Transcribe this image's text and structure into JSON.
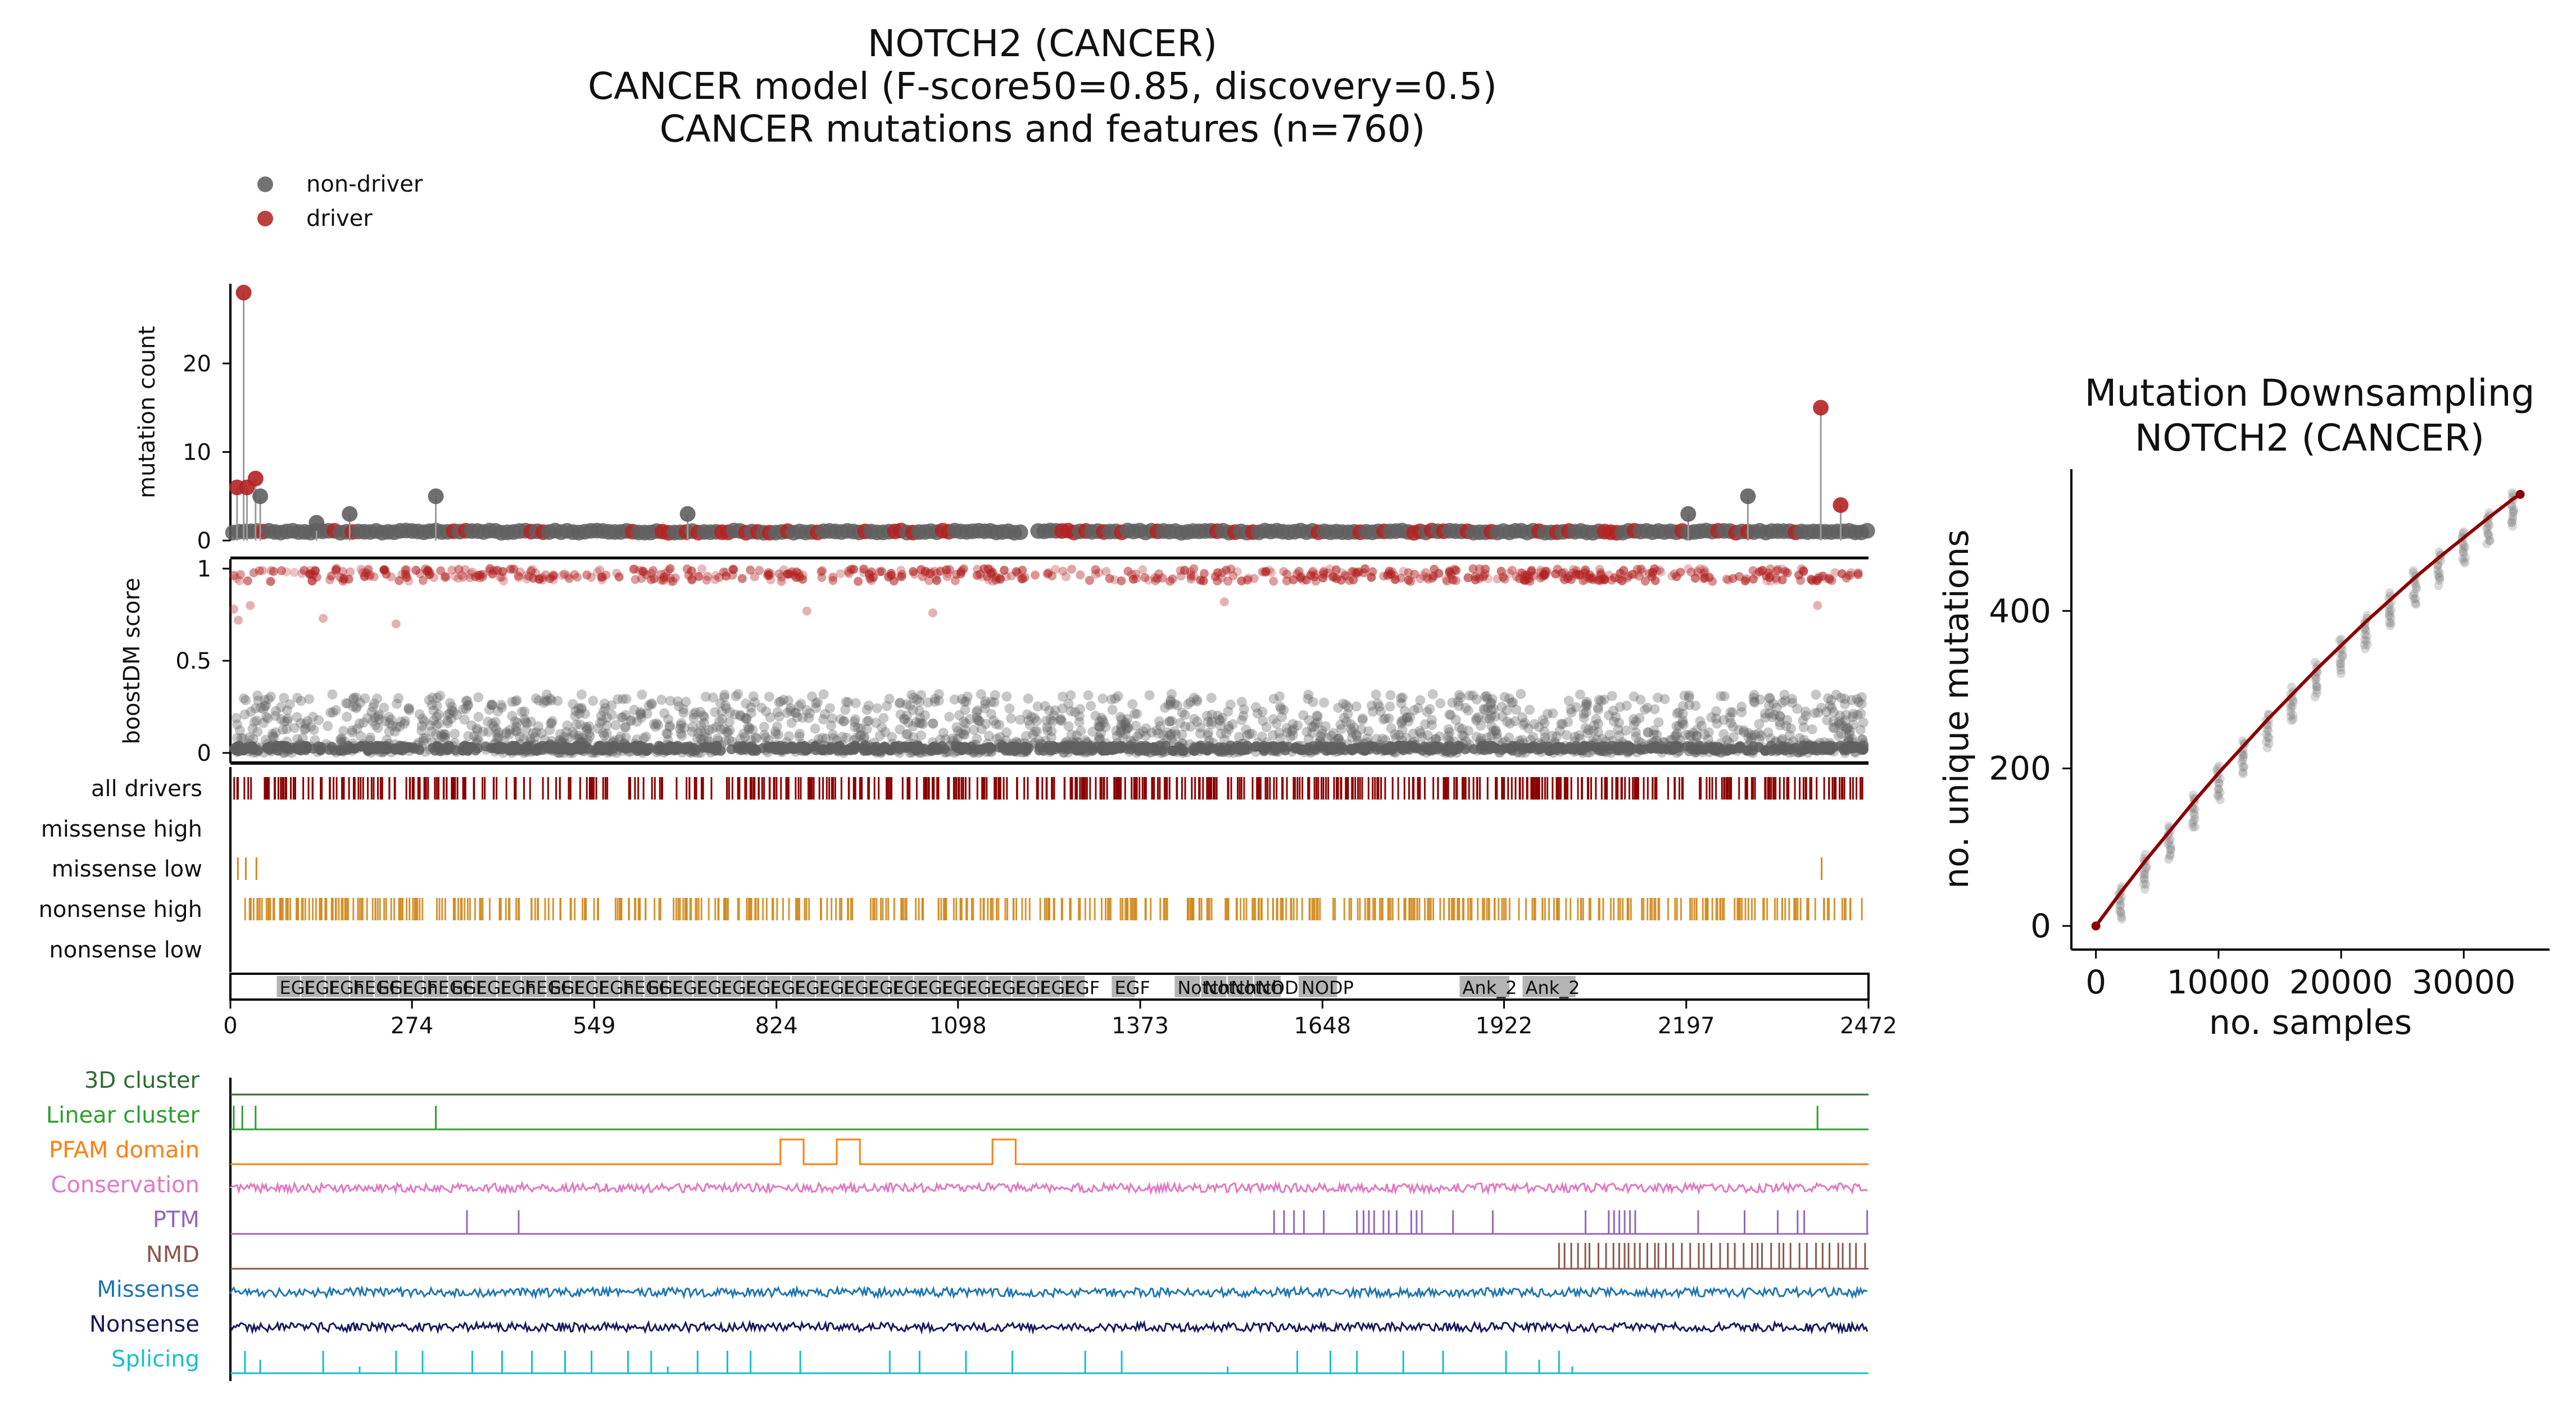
{
  "figure": {
    "title_lines": [
      "NOTCH2 (CANCER)",
      "CANCER model (F-score50=0.85, discovery=0.5)",
      "CANCER mutations and features (n=760)"
    ],
    "legend": [
      {
        "label": "non-driver",
        "color": "#5a5a5a"
      },
      {
        "label": "driver",
        "color": "#b02020"
      }
    ]
  },
  "colors": {
    "nondriver": "#5f5f5f",
    "driver": "#b22222",
    "driver_dark": "#8b0000",
    "nonsense": "#d08a1e",
    "domain_box": "#b4b4b4",
    "cluster3d": "#2e6b2e",
    "linear": "#2ca02c",
    "pfam": "#ff7f0e",
    "conservation": "#e377c2",
    "ptm": "#9467bd",
    "nmd": "#8c564b",
    "missense": "#1f77b4",
    "nonsense_track": "#1a1a5e",
    "splicing": "#17becf",
    "curve": "#8b0000"
  },
  "chart_data": [
    {
      "type": "scatter",
      "panel": "mutation count (lollipop)",
      "ylabel": "mutation count",
      "ylim": [
        0,
        29
      ],
      "yticks": [
        0,
        10,
        20
      ],
      "xlim": [
        0,
        2472
      ],
      "xticks": [
        0,
        274,
        549,
        824,
        1098,
        1373,
        1648,
        1922,
        2197,
        2472
      ],
      "notable_points": [
        {
          "x": 10,
          "y": 6,
          "driver": true
        },
        {
          "x": 20,
          "y": 28,
          "driver": true
        },
        {
          "x": 25,
          "y": 6,
          "driver": true
        },
        {
          "x": 38,
          "y": 7,
          "driver": true
        },
        {
          "x": 45,
          "y": 5,
          "driver": false
        },
        {
          "x": 130,
          "y": 2,
          "driver": false
        },
        {
          "x": 180,
          "y": 3,
          "driver": false
        },
        {
          "x": 310,
          "y": 5,
          "driver": false
        },
        {
          "x": 690,
          "y": 3,
          "driver": false
        },
        {
          "x": 2200,
          "y": 3,
          "driver": false
        },
        {
          "x": 2290,
          "y": 5,
          "driver": false
        },
        {
          "x": 2400,
          "y": 15,
          "driver": true
        },
        {
          "x": 2430,
          "y": 4,
          "driver": true
        }
      ]
    },
    {
      "type": "scatter",
      "panel": "boostDM score",
      "ylabel": "boostDM score",
      "ylim": [
        0,
        1
      ],
      "yticks": [
        0,
        0.5,
        1
      ],
      "xlim": [
        0,
        2472
      ],
      "bands": [
        {
          "group": "driver",
          "y_range": [
            0.93,
            1.0
          ]
        },
        {
          "group": "nondriver",
          "y_range": [
            0.0,
            0.32
          ]
        }
      ],
      "outliers": [
        {
          "x": 5,
          "y": 0.78,
          "driver": true
        },
        {
          "x": 12,
          "y": 0.72,
          "driver": true
        },
        {
          "x": 30,
          "y": 0.8,
          "driver": true
        },
        {
          "x": 140,
          "y": 0.73,
          "driver": true
        },
        {
          "x": 250,
          "y": 0.7,
          "driver": true
        },
        {
          "x": 870,
          "y": 0.77,
          "driver": true
        },
        {
          "x": 1060,
          "y": 0.76,
          "driver": true
        },
        {
          "x": 1500,
          "y": 0.82,
          "driver": true
        },
        {
          "x": 2395,
          "y": 0.8,
          "driver": true
        }
      ]
    },
    {
      "type": "table",
      "panel": "consequence tracks",
      "rows": [
        "all drivers",
        "missense high",
        "missense low",
        "nonsense high",
        "nonsense low"
      ],
      "missense_low_positions": [
        10,
        22,
        38,
        2400
      ]
    },
    {
      "type": "bar",
      "panel": "Pfam domains",
      "domains": [
        {
          "start": 70,
          "end": 105,
          "label": "EGF"
        },
        {
          "start": 107,
          "end": 142,
          "label": "EGF"
        },
        {
          "start": 144,
          "end": 179,
          "label": "EGF"
        },
        {
          "start": 181,
          "end": 216,
          "label": "hEGF"
        },
        {
          "start": 218,
          "end": 253,
          "label": "EGF"
        },
        {
          "start": 255,
          "end": 290,
          "label": "EGF"
        },
        {
          "start": 292,
          "end": 327,
          "label": "hEGF"
        },
        {
          "start": 329,
          "end": 364,
          "label": "EGF"
        },
        {
          "start": 366,
          "end": 401,
          "label": "EGF"
        },
        {
          "start": 403,
          "end": 438,
          "label": "EGF"
        },
        {
          "start": 440,
          "end": 475,
          "label": "hEGF"
        },
        {
          "start": 477,
          "end": 512,
          "label": "EGF"
        },
        {
          "start": 514,
          "end": 549,
          "label": "EGF"
        },
        {
          "start": 551,
          "end": 586,
          "label": "EGF"
        },
        {
          "start": 588,
          "end": 623,
          "label": "hEGF"
        },
        {
          "start": 625,
          "end": 660,
          "label": "EGF"
        },
        {
          "start": 662,
          "end": 697,
          "label": "EGF"
        },
        {
          "start": 699,
          "end": 734,
          "label": "EGF"
        },
        {
          "start": 736,
          "end": 771,
          "label": "EGF"
        },
        {
          "start": 773,
          "end": 808,
          "label": "EGF"
        },
        {
          "start": 810,
          "end": 845,
          "label": "EGF"
        },
        {
          "start": 847,
          "end": 882,
          "label": "EGF"
        },
        {
          "start": 884,
          "end": 919,
          "label": "EGF"
        },
        {
          "start": 921,
          "end": 956,
          "label": "EGF"
        },
        {
          "start": 958,
          "end": 993,
          "label": "EGF"
        },
        {
          "start": 995,
          "end": 1030,
          "label": "EGF"
        },
        {
          "start": 1032,
          "end": 1067,
          "label": "EGF"
        },
        {
          "start": 1069,
          "end": 1104,
          "label": "EGF"
        },
        {
          "start": 1106,
          "end": 1141,
          "label": "EGF"
        },
        {
          "start": 1143,
          "end": 1178,
          "label": "EGF"
        },
        {
          "start": 1180,
          "end": 1215,
          "label": "EGF"
        },
        {
          "start": 1217,
          "end": 1252,
          "label": "EGF"
        },
        {
          "start": 1254,
          "end": 1289,
          "label": "EGF"
        },
        {
          "start": 1330,
          "end": 1365,
          "label": "EGF"
        },
        {
          "start": 1425,
          "end": 1463,
          "label": "Notch"
        },
        {
          "start": 1465,
          "end": 1503,
          "label": "Notch"
        },
        {
          "start": 1505,
          "end": 1543,
          "label": "Notch"
        },
        {
          "start": 1545,
          "end": 1585,
          "label": "NOD"
        },
        {
          "start": 1612,
          "end": 1670,
          "label": "NODP"
        },
        {
          "start": 1855,
          "end": 1930,
          "label": "Ank_2"
        },
        {
          "start": 1950,
          "end": 2030,
          "label": "Ank_2"
        }
      ]
    },
    {
      "type": "line",
      "panel": "feature tracks",
      "xlim": [
        0,
        2472
      ],
      "tracks": [
        {
          "name": "3D cluster",
          "kind": "flat"
        },
        {
          "name": "Linear cluster",
          "kind": "spikes",
          "spikes": [
            5,
            18,
            38,
            310,
            2395
          ]
        },
        {
          "name": "PFAM domain",
          "kind": "steps",
          "ranges": [
            [
              830,
              865
            ],
            [
              915,
              950
            ],
            [
              1150,
              1185
            ]
          ]
        },
        {
          "name": "Conservation",
          "kind": "noise"
        },
        {
          "name": "PTM",
          "kind": "spikes",
          "spikes": [
            357,
            435,
            1575,
            1590,
            1605,
            1620,
            1650,
            1700,
            1710,
            1718,
            1726,
            1740,
            1748,
            1760,
            1782,
            1790,
            1798,
            1845,
            1905,
            2045,
            2080,
            2088,
            2096,
            2104,
            2112,
            2120,
            2215,
            2285,
            2335,
            2365,
            2375,
            2470
          ]
        },
        {
          "name": "NMD",
          "kind": "nmd",
          "start": 2005
        },
        {
          "name": "Missense",
          "kind": "noise"
        },
        {
          "name": "Nonsense",
          "kind": "noise"
        },
        {
          "name": "Splicing",
          "kind": "splice",
          "spikes": [
            [
              22,
              1.0
            ],
            [
              45,
              0.6
            ],
            [
              140,
              1.0
            ],
            [
              195,
              0.3
            ],
            [
              250,
              1.0
            ],
            [
              290,
              1.0
            ],
            [
              365,
              1.0
            ],
            [
              410,
              1.0
            ],
            [
              455,
              1.0
            ],
            [
              505,
              1.0
            ],
            [
              545,
              1.0
            ],
            [
              600,
              1.0
            ],
            [
              635,
              1.0
            ],
            [
              660,
              0.3
            ],
            [
              705,
              1.0
            ],
            [
              750,
              1.0
            ],
            [
              785,
              1.0
            ],
            [
              860,
              1.0
            ],
            [
              995,
              1.0
            ],
            [
              1040,
              1.0
            ],
            [
              1110,
              1.0
            ],
            [
              1180,
              1.0
            ],
            [
              1290,
              1.0
            ],
            [
              1345,
              1.0
            ],
            [
              1505,
              0.3
            ],
            [
              1610,
              1.0
            ],
            [
              1660,
              1.0
            ],
            [
              1700,
              1.0
            ],
            [
              1770,
              1.0
            ],
            [
              1830,
              1.0
            ],
            [
              1925,
              1.0
            ],
            [
              1975,
              0.6
            ],
            [
              2005,
              1.0
            ],
            [
              2025,
              0.3
            ]
          ]
        }
      ]
    },
    {
      "type": "line",
      "panel": "downsampling",
      "title_lines": [
        "Mutation Downsampling",
        "NOTCH2 (CANCER)"
      ],
      "xlabel": "no. samples",
      "ylabel": "no. unique mutations",
      "xlim": [
        -2000,
        37000
      ],
      "ylim": [
        -30,
        580
      ],
      "xticks": [
        0,
        10000,
        20000,
        30000
      ],
      "yticks": [
        0,
        200,
        400
      ],
      "curve_x": [
        0,
        2000,
        4000,
        6000,
        8000,
        10000,
        12000,
        14000,
        16000,
        18000,
        20000,
        22000,
        24000,
        26000,
        28000,
        30000,
        32000,
        34000,
        34600
      ],
      "curve_y": [
        0,
        42,
        82,
        120,
        158,
        194,
        228,
        262,
        294,
        326,
        356,
        386,
        414,
        442,
        468,
        493,
        518,
        542,
        548
      ],
      "sample_columns_x": [
        2000,
        4000,
        6000,
        8000,
        10000,
        12000,
        14000,
        16000,
        18000,
        20000,
        22000,
        24000,
        26000,
        28000,
        30000,
        32000,
        34000
      ]
    }
  ]
}
